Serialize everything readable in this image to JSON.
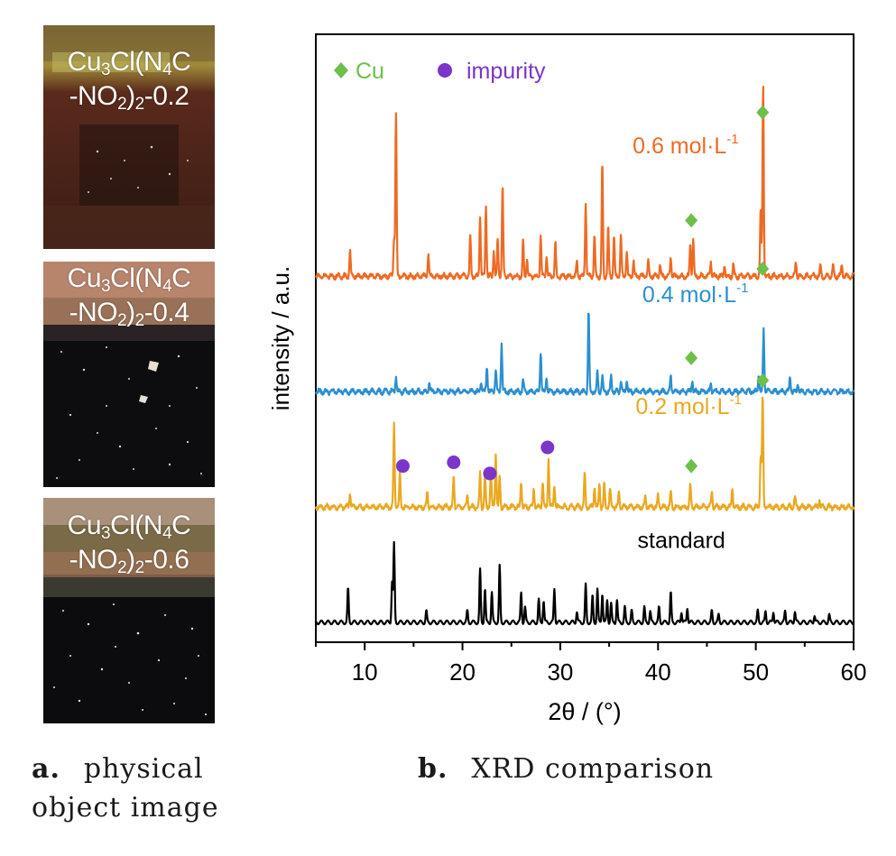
{
  "panel_a": {
    "caption_letter": "a.",
    "caption_line1": "physical",
    "caption_line2": "object image",
    "samples": [
      {
        "formula_line1": "Cu3Cl(N4C",
        "formula_line2": "-NO2)2-0.2"
      },
      {
        "formula_line1": "Cu3Cl(N4C",
        "formula_line2": "-NO2)2-0.4"
      },
      {
        "formula_line1": "Cu3Cl(N4C",
        "formula_line2": "-NO2)2-0.6"
      }
    ]
  },
  "panel_b": {
    "caption_letter": "b.",
    "caption_text": "XRD comparison"
  },
  "chart_data": {
    "type": "line",
    "title": "",
    "xlabel": "2θ / (°)",
    "ylabel": "intensity / a.u.",
    "xlim": [
      5,
      60
    ],
    "xticks": [
      10,
      20,
      30,
      40,
      50,
      60
    ],
    "grid": false,
    "legend": {
      "placement": "top-left",
      "entries": [
        {
          "marker": "diamond",
          "color": "#6cc04a",
          "label": "Cu"
        },
        {
          "marker": "circle",
          "color": "#7b35c9",
          "label": "impurity"
        }
      ]
    },
    "series": [
      {
        "name": "standard",
        "color": "#000000",
        "baseline": 0,
        "peaks": [
          [
            8.3,
            0.9
          ],
          [
            12.8,
            1.1
          ],
          [
            13.0,
            2.1
          ],
          [
            16.3,
            0.3
          ],
          [
            20.5,
            0.3
          ],
          [
            21.8,
            1.4
          ],
          [
            22.3,
            0.9
          ],
          [
            23.0,
            0.8
          ],
          [
            23.8,
            1.5
          ],
          [
            26.0,
            0.8
          ],
          [
            26.4,
            0.4
          ],
          [
            27.8,
            0.6
          ],
          [
            28.3,
            0.6
          ],
          [
            29.4,
            0.9
          ],
          [
            31.7,
            0.3
          ],
          [
            32.6,
            1.0
          ],
          [
            33.3,
            0.7
          ],
          [
            33.8,
            0.9
          ],
          [
            34.3,
            0.8
          ],
          [
            34.8,
            0.6
          ],
          [
            35.2,
            0.5
          ],
          [
            35.8,
            0.6
          ],
          [
            36.6,
            0.4
          ],
          [
            37.3,
            0.3
          ],
          [
            38.6,
            0.4
          ],
          [
            39.2,
            0.3
          ],
          [
            40.1,
            0.4
          ],
          [
            41.3,
            0.8
          ],
          [
            42.4,
            0.3
          ],
          [
            43.0,
            0.4
          ],
          [
            45.5,
            0.3
          ],
          [
            46.2,
            0.2
          ],
          [
            50.2,
            0.3
          ],
          [
            51.0,
            0.3
          ],
          [
            51.8,
            0.3
          ],
          [
            53.0,
            0.3
          ],
          [
            54.0,
            0.3
          ],
          [
            56.0,
            0.2
          ],
          [
            57.5,
            0.2
          ]
        ]
      },
      {
        "name": "0.2 mol·L⁻¹",
        "color": "#eaa81f",
        "baseline": 3.1,
        "peaks": [
          [
            8.5,
            0.4
          ],
          [
            13.0,
            2.2
          ],
          [
            13.6,
            0.9
          ],
          [
            16.4,
            0.4
          ],
          [
            19.1,
            0.8
          ],
          [
            20.5,
            0.3
          ],
          [
            21.8,
            0.9
          ],
          [
            22.3,
            0.8
          ],
          [
            22.9,
            1.0
          ],
          [
            23.4,
            1.5
          ],
          [
            23.8,
            0.8
          ],
          [
            26.0,
            0.7
          ],
          [
            27.3,
            0.5
          ],
          [
            28.2,
            0.7
          ],
          [
            28.8,
            1.3
          ],
          [
            29.4,
            0.6
          ],
          [
            32.5,
            0.9
          ],
          [
            33.5,
            0.6
          ],
          [
            34.0,
            0.6
          ],
          [
            34.5,
            0.6
          ],
          [
            35.1,
            0.5
          ],
          [
            36.0,
            0.4
          ],
          [
            38.7,
            0.3
          ],
          [
            40.0,
            0.3
          ],
          [
            41.3,
            0.4
          ],
          [
            43.3,
            0.6
          ],
          [
            45.5,
            0.4
          ],
          [
            47.6,
            0.5
          ],
          [
            50.5,
            1.4
          ],
          [
            50.7,
            3.0
          ],
          [
            54.0,
            0.3
          ],
          [
            56.5,
            0.2
          ]
        ]
      },
      {
        "name": "0.4 mol·L⁻¹",
        "color": "#2b8fd0",
        "baseline": 6.2,
        "peaks": [
          [
            13.2,
            0.4
          ],
          [
            16.6,
            0.3
          ],
          [
            21.9,
            0.3
          ],
          [
            22.5,
            0.7
          ],
          [
            23.4,
            0.6
          ],
          [
            24.0,
            1.3
          ],
          [
            26.2,
            0.3
          ],
          [
            28.0,
            1.1
          ],
          [
            28.6,
            0.4
          ],
          [
            32.9,
            2.2
          ],
          [
            33.8,
            0.5
          ],
          [
            34.3,
            0.4
          ],
          [
            35.2,
            0.4
          ],
          [
            36.2,
            0.3
          ],
          [
            36.8,
            0.3
          ],
          [
            41.3,
            0.4
          ],
          [
            43.5,
            0.3
          ],
          [
            45.4,
            0.2
          ],
          [
            50.3,
            0.5
          ],
          [
            50.8,
            1.7
          ],
          [
            53.5,
            0.4
          ],
          [
            54.3,
            0.2
          ]
        ]
      },
      {
        "name": "0.6 mol·L⁻¹",
        "color": "#ee6a22",
        "baseline": 9.3,
        "peaks": [
          [
            8.5,
            0.7
          ],
          [
            13.0,
            1.0
          ],
          [
            13.2,
            4.4
          ],
          [
            16.5,
            0.6
          ],
          [
            20.8,
            1.1
          ],
          [
            21.8,
            1.6
          ],
          [
            22.4,
            1.9
          ],
          [
            23.2,
            0.7
          ],
          [
            23.6,
            1.0
          ],
          [
            24.1,
            2.4
          ],
          [
            26.2,
            0.9
          ],
          [
            26.6,
            0.5
          ],
          [
            28.0,
            1.1
          ],
          [
            28.6,
            0.6
          ],
          [
            29.5,
            0.9
          ],
          [
            31.7,
            0.4
          ],
          [
            32.6,
            2.0
          ],
          [
            33.5,
            1.1
          ],
          [
            34.3,
            3.0
          ],
          [
            34.9,
            1.3
          ],
          [
            35.5,
            1.1
          ],
          [
            36.2,
            1.1
          ],
          [
            36.8,
            0.7
          ],
          [
            37.5,
            0.4
          ],
          [
            39.0,
            0.4
          ],
          [
            40.2,
            0.3
          ],
          [
            41.3,
            0.5
          ],
          [
            43.3,
            0.9
          ],
          [
            43.6,
            1.0
          ],
          [
            45.4,
            0.4
          ],
          [
            46.8,
            0.3
          ],
          [
            47.7,
            0.3
          ],
          [
            50.5,
            1.8
          ],
          [
            50.75,
            5.2
          ],
          [
            54.1,
            0.4
          ],
          [
            56.6,
            0.3
          ],
          [
            57.9,
            0.3
          ],
          [
            58.8,
            0.3
          ]
        ]
      }
    ],
    "markers": [
      {
        "symbol": "diamond",
        "color": "#6cc04a",
        "x": 43.4,
        "y": 10.8
      },
      {
        "symbol": "diamond",
        "color": "#6cc04a",
        "x": 50.7,
        "y": 13.7
      },
      {
        "symbol": "diamond",
        "color": "#6cc04a",
        "x": 43.4,
        "y": 7.1
      },
      {
        "symbol": "diamond",
        "color": "#6cc04a",
        "x": 50.7,
        "y": 9.5
      },
      {
        "symbol": "diamond",
        "color": "#6cc04a",
        "x": 43.4,
        "y": 4.2
      },
      {
        "symbol": "diamond",
        "color": "#6cc04a",
        "x": 50.7,
        "y": 6.5
      },
      {
        "symbol": "circle",
        "color": "#7b35c9",
        "x": 13.9,
        "y": 4.2
      },
      {
        "symbol": "circle",
        "color": "#7b35c9",
        "x": 19.1,
        "y": 4.3
      },
      {
        "symbol": "circle",
        "color": "#7b35c9",
        "x": 22.8,
        "y": 4.0
      },
      {
        "symbol": "circle",
        "color": "#7b35c9",
        "x": 28.7,
        "y": 4.7
      }
    ],
    "annotations": [
      {
        "text": "0.6 mol·L",
        "sup": "-1",
        "color": "#ee6a22",
        "x": 37.4,
        "y": 12.6
      },
      {
        "text": "0.4 mol·L",
        "sup": "-1",
        "color": "#2b8fd0",
        "x": 38.4,
        "y": 8.6
      },
      {
        "text": "0.2 mol·L",
        "sup": "-1",
        "color": "#eaa81f",
        "x": 37.7,
        "y": 5.6
      },
      {
        "text": "standard",
        "sup": "",
        "color": "#000000",
        "x": 37.9,
        "y": 2.0
      }
    ]
  }
}
